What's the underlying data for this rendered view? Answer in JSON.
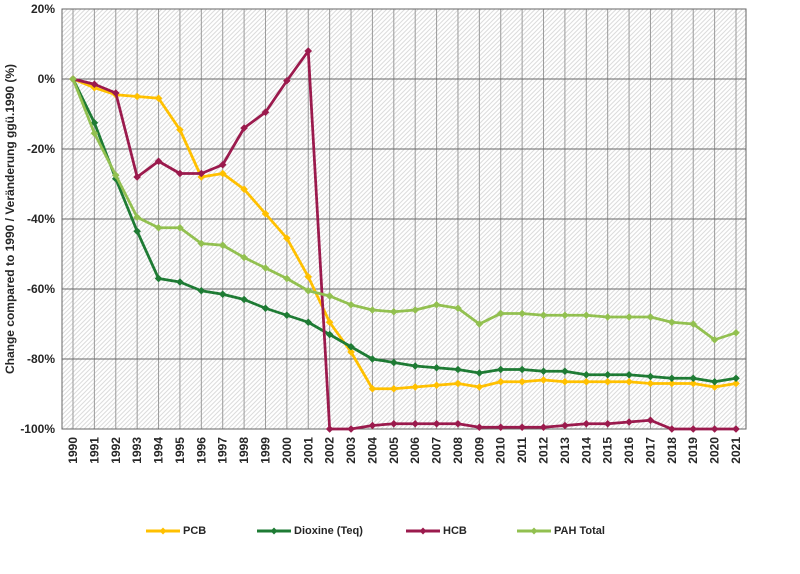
{
  "chart_data": {
    "type": "line",
    "title": "",
    "ylabel": "Change compared to 1990 / Veränderung ggü.1990 (%)",
    "xlabel": "",
    "ylim": [
      -100,
      20
    ],
    "ytick_step": 20,
    "ytick_labels": [
      "20%",
      "0%",
      "-20%",
      "-40%",
      "-60%",
      "-80%",
      "-100%"
    ],
    "grid": "both",
    "plot_background": "diagonal-hatch",
    "legend_position": "bottom",
    "marker": "diamond",
    "x": [
      1990,
      1991,
      1992,
      1993,
      1994,
      1995,
      1996,
      1997,
      1998,
      1999,
      2000,
      2001,
      2002,
      2003,
      2004,
      2005,
      2006,
      2007,
      2008,
      2009,
      2010,
      2011,
      2012,
      2013,
      2014,
      2015,
      2016,
      2017,
      2018,
      2019,
      2020,
      2021
    ],
    "series": [
      {
        "name": "PCB",
        "color": "#FFC000",
        "values": [
          0,
          -2.5,
          -4.5,
          -5,
          -5.5,
          -14.5,
          -28,
          -27,
          -31.5,
          -38.5,
          -45.5,
          -56.5,
          -69.5,
          -78,
          -88.5,
          -88.5,
          -88,
          -87.5,
          -87,
          -88,
          -86.5,
          -86.5,
          -86,
          -86.5,
          -86.5,
          -86.5,
          -86.5,
          -87,
          -87,
          -87,
          -88,
          -87
        ]
      },
      {
        "name": "Dioxine (Teq)",
        "color": "#1E7B34",
        "values": [
          0,
          -12.5,
          -28.5,
          -43.5,
          -57,
          -58,
          -60.5,
          -61.5,
          -63,
          -65.5,
          -67.5,
          -69.5,
          -73,
          -76.5,
          -80,
          -81,
          -82,
          -82.5,
          -83,
          -84,
          -83,
          -83,
          -83.5,
          -83.5,
          -84.5,
          -84.5,
          -84.5,
          -85,
          -85.5,
          -85.5,
          -86.5,
          -85.5
        ]
      },
      {
        "name": "HCB",
        "color": "#9B1A4D",
        "values": [
          0,
          -1.5,
          -4,
          -28,
          -23.5,
          -27,
          -27,
          -24.5,
          -14,
          -9.5,
          -0.5,
          8,
          -100,
          -100,
          -99,
          -98.5,
          -98.5,
          -98.5,
          -98.5,
          -99.5,
          -99.5,
          -99.5,
          -99.5,
          -99,
          -98.5,
          -98.5,
          -98,
          -97.5,
          -100,
          -100,
          -100,
          -100
        ]
      },
      {
        "name": "PAH Total",
        "color": "#92C050",
        "values": [
          0,
          -15.5,
          -27.5,
          -39.5,
          -42.5,
          -42.5,
          -47,
          -47.5,
          -51,
          -54,
          -57,
          -60.5,
          -62,
          -64.5,
          -66,
          -66.5,
          -66,
          -64.5,
          -65.5,
          -70,
          -67,
          -67,
          -67.5,
          -67.5,
          -67.5,
          -68,
          -68,
          -68,
          -69.5,
          -70,
          -74.5,
          -72.5
        ]
      }
    ],
    "colors": {
      "vertical_grid": "#9a9a9a",
      "horizontal_grid": "#666666",
      "plot_border": "#666666",
      "hatch_line": "#dcdcdc",
      "text": "#262626"
    }
  }
}
